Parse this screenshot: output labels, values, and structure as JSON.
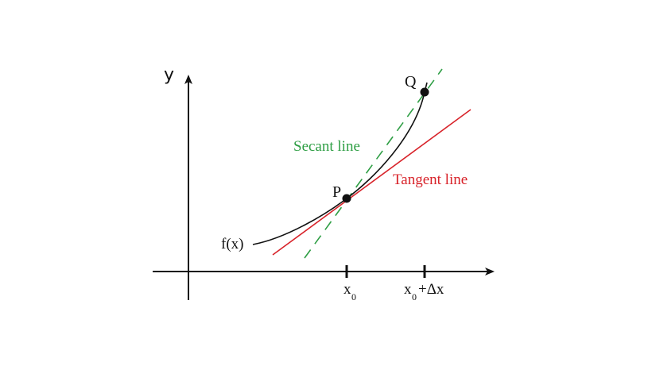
{
  "labels": {
    "y_axis": "y",
    "function": "f(x)",
    "point_p": "P",
    "point_q": "Q",
    "secant": "Secant line",
    "tangent": "Tangent line",
    "tick_x0_main": "x",
    "tick_x0_sub": "0",
    "tick_dx_main": "x",
    "tick_dx_sub": "0",
    "tick_dx_rest": "+Δx"
  },
  "colors": {
    "axis": "#111111",
    "curve": "#111111",
    "secant": "#2e9e44",
    "tangent": "#d8232a"
  }
}
